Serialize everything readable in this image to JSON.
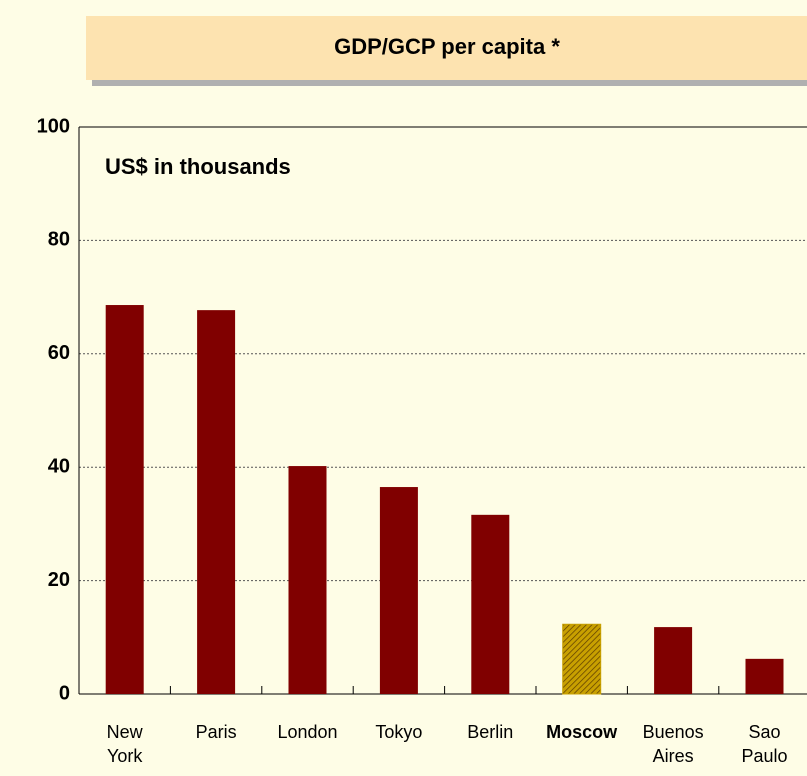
{
  "chart_data": {
    "type": "bar",
    "title": "GDP/GCP per capita *",
    "subtitle": "US$ in thousands",
    "categories": [
      "New York",
      "Paris",
      "London",
      "Tokyo",
      "Berlin",
      "Moscow",
      "Buenos Aires",
      "Sao Paulo"
    ],
    "values": [
      68.6,
      67.7,
      40.2,
      36.5,
      31.6,
      12.3,
      11.8,
      6.2
    ],
    "color": "#800000",
    "highlight_index": 5,
    "highlight_color": "#c8a000",
    "ylim": [
      0,
      100
    ],
    "yticks": [
      0,
      20,
      40,
      60,
      80,
      100
    ],
    "grid": true
  }
}
